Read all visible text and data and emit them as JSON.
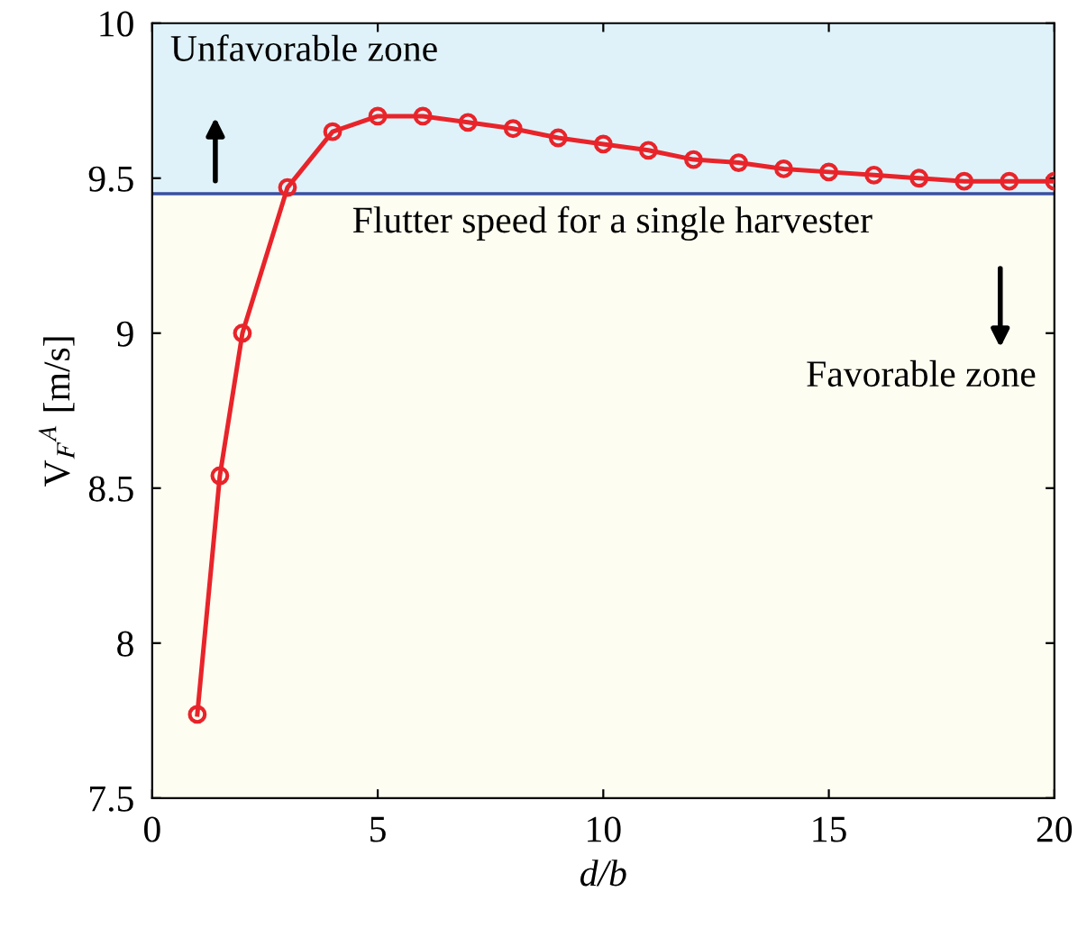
{
  "chart_data": {
    "type": "line",
    "xlabel": "d/b",
    "ylabel": "V$_{F}$$^{A}$ [m/s]",
    "x": [
      1,
      1.5,
      2,
      3,
      4,
      5,
      6,
      7,
      8,
      9,
      10,
      11,
      12,
      13,
      14,
      15,
      16,
      17,
      18,
      19,
      20
    ],
    "series": [
      {
        "color": "#e8242a",
        "values": [
          7.77,
          8.54,
          9.0,
          9.47,
          9.65,
          9.7,
          9.7,
          9.68,
          9.66,
          9.63,
          9.61,
          9.59,
          9.56,
          9.55,
          9.53,
          9.52,
          9.51,
          9.5,
          9.49,
          9.49,
          9.49
        ]
      }
    ],
    "marker": "circle",
    "line_style": "solid",
    "xlim": [
      0,
      20
    ],
    "xticks": [
      0,
      5,
      10,
      15,
      20
    ],
    "ylim": [
      7.5,
      10
    ],
    "yticks": [
      7.5,
      8,
      8.5,
      9,
      9.5,
      10
    ],
    "ref_lines": [
      {
        "axis": "y",
        "value": 9.45,
        "label": "Flutter speed for a single harvester",
        "color": "#3a4fa0"
      }
    ],
    "bands": [
      {
        "axis": "y",
        "from": 9.45,
        "to": 10,
        "label": "Unfavorable zone",
        "color": "#dff2f9"
      },
      {
        "axis": "y",
        "from": 7.5,
        "to": 9.45,
        "label": "Favorable zone",
        "color": "#fefdf1"
      }
    ],
    "grid": false
  }
}
